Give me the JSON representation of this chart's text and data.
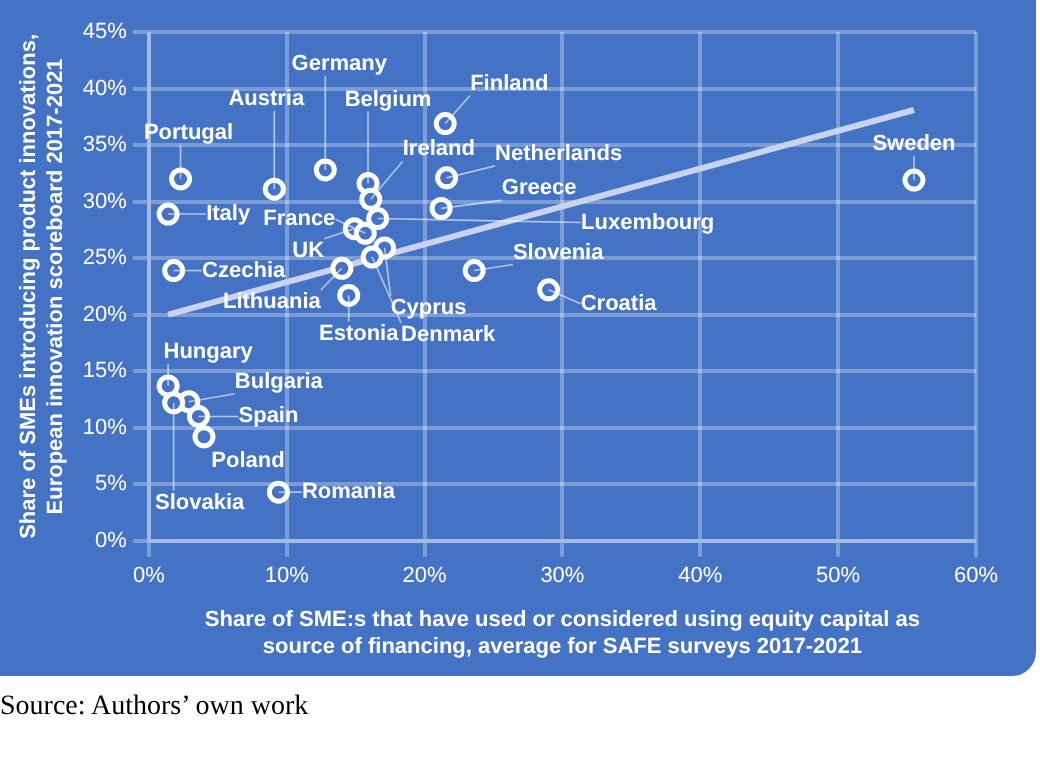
{
  "chart_data": {
    "type": "scatter",
    "xlabel": "Share of SME:s that have used or considered using equity capital as source of financing, average for SAFE surveys 2017-2021",
    "ylabel": "Share of SMEs introducing product innovations, European innovation scoreboard 2017-2021",
    "series": [
      {
        "color": "#ffffff",
        "marker": "circle",
        "x": [
          2.3,
          9.1,
          12.8,
          15.9,
          21.5,
          16.1,
          21.6,
          16.6,
          21.2,
          14.9,
          15.7,
          17.1,
          16.2,
          14.0,
          14.5,
          1.4,
          1.8,
          23.6,
          29.0,
          55.5,
          1.4,
          2.9,
          3.6,
          4.0,
          1.8,
          9.4
        ],
        "values": [
          32.0,
          31.1,
          32.8,
          31.6,
          36.9,
          30.2,
          32.1,
          28.5,
          29.4,
          27.6,
          27.2,
          25.9,
          25.1,
          24.1,
          21.7,
          28.9,
          23.9,
          23.9,
          22.2,
          31.9,
          13.7,
          12.3,
          11.0,
          9.2,
          12.2,
          4.3
        ]
      },
      {
        "type": "line",
        "color": "#c9d4ec",
        "marker": "none",
        "x": [
          1.4,
          55.5
        ],
        "values": [
          20.0,
          38.1
        ]
      }
    ],
    "xlim": [
      0,
      60
    ],
    "xticks": [
      {
        "value": 0,
        "label": "0%"
      },
      {
        "value": 10,
        "label": "10%"
      },
      {
        "value": 20,
        "label": "20%"
      },
      {
        "value": 30,
        "label": "30%"
      },
      {
        "value": 40,
        "label": "40%"
      },
      {
        "value": 50,
        "label": "50%"
      },
      {
        "value": 60,
        "label": "60%"
      }
    ],
    "ylim": [
      0,
      45
    ],
    "yticks": [
      {
        "value": 0,
        "label": "0%"
      },
      {
        "value": 5,
        "label": "5%"
      },
      {
        "value": 10,
        "label": "10%"
      },
      {
        "value": 15,
        "label": "15%"
      },
      {
        "value": 20,
        "label": "20%"
      },
      {
        "value": 25,
        "label": "25%"
      },
      {
        "value": 30,
        "label": "30%"
      },
      {
        "value": 35,
        "label": "35%"
      },
      {
        "value": 40,
        "label": "40%"
      },
      {
        "value": 45,
        "label": "45%"
      }
    ],
    "grid": true,
    "legend": false,
    "annotations": [
      {
        "text": "Portugal",
        "x": 2.3,
        "y": 32.0
      },
      {
        "text": "Austria",
        "x": 9.1,
        "y": 31.1
      },
      {
        "text": "Germany",
        "x": 12.8,
        "y": 32.8
      },
      {
        "text": "Belgium",
        "x": 15.9,
        "y": 31.6
      },
      {
        "text": "Finland",
        "x": 21.5,
        "y": 36.9
      },
      {
        "text": "Ireland",
        "x": 16.1,
        "y": 30.2
      },
      {
        "text": "Netherlands",
        "x": 21.6,
        "y": 32.1
      },
      {
        "text": "Luxembourg",
        "x": 16.6,
        "y": 28.5
      },
      {
        "text": "Greece",
        "x": 21.2,
        "y": 29.4
      },
      {
        "text": "UK",
        "x": 14.9,
        "y": 27.6
      },
      {
        "text": "France",
        "x": 15.7,
        "y": 27.2
      },
      {
        "text": "Cyprus",
        "x": 17.1,
        "y": 25.9
      },
      {
        "text": "Denmark",
        "x": 16.2,
        "y": 25.1
      },
      {
        "text": "Lithuania",
        "x": 14.0,
        "y": 24.1
      },
      {
        "text": "Estonia",
        "x": 14.5,
        "y": 21.7
      },
      {
        "text": "Italy",
        "x": 1.4,
        "y": 28.9
      },
      {
        "text": "Czechia",
        "x": 1.8,
        "y": 23.9
      },
      {
        "text": "Slovenia",
        "x": 23.6,
        "y": 23.9
      },
      {
        "text": "Croatia",
        "x": 29.0,
        "y": 22.2
      },
      {
        "text": "Sweden",
        "x": 55.5,
        "y": 31.9
      },
      {
        "text": "Hungary",
        "x": 1.4,
        "y": 13.7
      },
      {
        "text": "Bulgaria",
        "x": 2.9,
        "y": 12.3
      },
      {
        "text": "Spain",
        "x": 3.6,
        "y": 11.0
      },
      {
        "text": "Poland",
        "x": 4.0,
        "y": 9.2
      },
      {
        "text": "Slovakia",
        "x": 1.8,
        "y": 12.2
      },
      {
        "text": "Romania",
        "x": 9.4,
        "y": 4.3
      },
      "Source: Authors’ own work"
    ]
  }
}
